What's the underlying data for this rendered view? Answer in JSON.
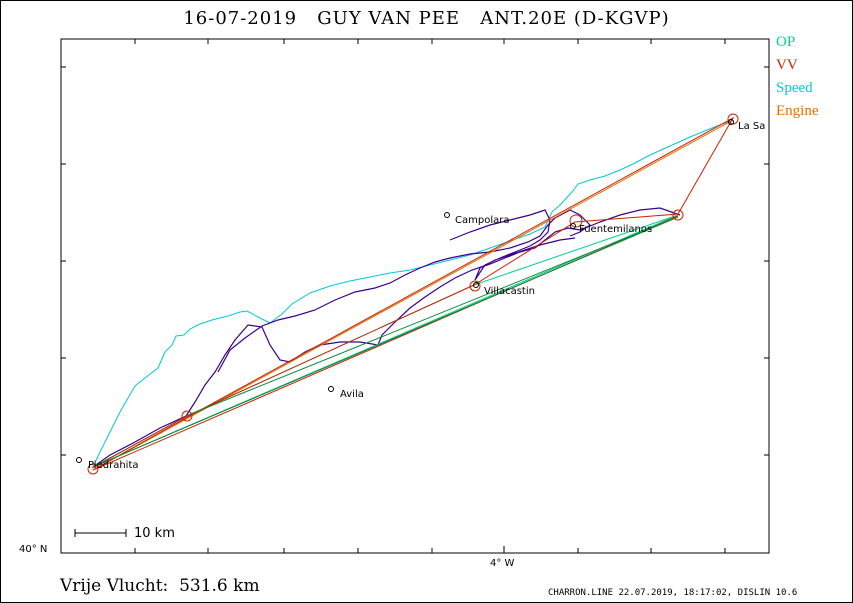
{
  "title": "16-07-2019   GUY VAN PEE   ANT.20E (D-KGVP)",
  "legend": {
    "op": {
      "label": "OP",
      "color": "#00d090"
    },
    "vv": {
      "label": "VV",
      "color": "#cc2200"
    },
    "speed": {
      "label": "Speed",
      "color": "#00c8d8"
    },
    "engine": {
      "label": "Engine",
      "color": "#e07000"
    }
  },
  "track_color": "#3a0090",
  "places": {
    "la_sa": "La Sa",
    "campolara": "Campolara",
    "fuentemilanos": "Fuentemilanos",
    "villacastin": "Villacastin",
    "avila": "Avila",
    "piedrahita": "Piedrahita"
  },
  "axes": {
    "lat_label": "40° N",
    "lon_label": "4° W"
  },
  "scale": {
    "label": "10 km"
  },
  "footer": {
    "distance": "Vrije Vlucht:  531.6 km",
    "credit": "CHARRON.LINE 22.07.2019, 18:17:02, DISLIN 10.6"
  }
}
